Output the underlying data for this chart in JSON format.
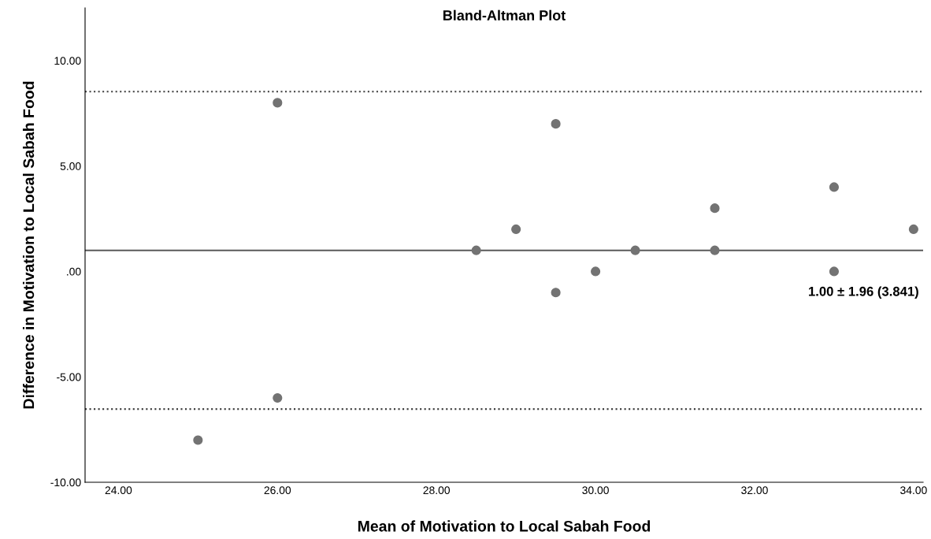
{
  "chart_data": {
    "type": "scatter",
    "title": "Bland-Altman Plot",
    "xlabel": "Mean of Motivation to Local Sabah Food",
    "ylabel": "Difference in Motivation to Local Sabah Food",
    "x": [
      25,
      26,
      26,
      28.5,
      29,
      29.5,
      29.5,
      30,
      30.5,
      31.5,
      31.5,
      33,
      33,
      34
    ],
    "series": [
      {
        "color": "#737373",
        "values": [
          -8,
          8,
          -6,
          1,
          2,
          7,
          -1,
          0,
          1,
          3,
          1,
          4,
          0,
          2
        ]
      }
    ],
    "marker": "circle",
    "grid": false,
    "xlim": [
      23.58,
      34.12
    ],
    "ylim": [
      -10,
      12.5
    ],
    "xticks": [
      {
        "value": 24,
        "label": "24.00"
      },
      {
        "value": 26,
        "label": "26.00"
      },
      {
        "value": 28,
        "label": "28.00"
      },
      {
        "value": 30,
        "label": "30.00"
      },
      {
        "value": 32,
        "label": "32.00"
      },
      {
        "value": 34,
        "label": "34.00"
      }
    ],
    "yticks": [
      {
        "value": -10,
        "label": "-10.00"
      },
      {
        "value": -5,
        "label": "-5.00"
      },
      {
        "value": 0,
        "label": ".00"
      },
      {
        "value": 5,
        "label": "5.00"
      },
      {
        "value": 10,
        "label": "10.00"
      }
    ],
    "ref_lines": [
      {
        "axis": "y",
        "value": 1.0,
        "color": "#595959",
        "line_style": "solid"
      },
      {
        "axis": "y",
        "value": 8.528,
        "color": "#404040",
        "line_style": "dotted"
      },
      {
        "axis": "y",
        "value": -6.528,
        "color": "#404040",
        "line_style": "dotted"
      }
    ],
    "annotations": [
      "1.00 ± 1.96 (3.841)"
    ]
  }
}
